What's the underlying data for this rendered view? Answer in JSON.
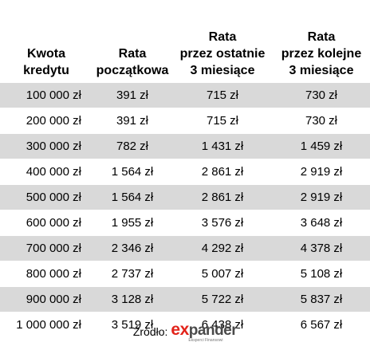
{
  "table": {
    "headers": [
      "Kwota\nkredytu",
      "Rata\npoczątkowa",
      "Rata\nprzez ostatnie\n3 miesiące",
      "Rata\nprzez kolejne\n3 miesiące"
    ],
    "rows": [
      [
        "100 000 zł",
        "391 zł",
        "715 zł",
        "730 zł"
      ],
      [
        "200 000 zł",
        "391 zł",
        "715 zł",
        "730 zł"
      ],
      [
        "300 000 zł",
        "782 zł",
        "1 431 zł",
        "1 459 zł"
      ],
      [
        "400 000 zł",
        "1 564 zł",
        "2 861 zł",
        "2 919 zł"
      ],
      [
        "500 000 zł",
        "1 564 zł",
        "2 861 zł",
        "2 919 zł"
      ],
      [
        "600 000 zł",
        "1 955 zł",
        "3 576 zł",
        "3 648 zł"
      ],
      [
        "700 000 zł",
        "2 346 zł",
        "4 292 zł",
        "4 378 zł"
      ],
      [
        "800 000 zł",
        "2 737 zł",
        "5 007 zł",
        "5 108 zł"
      ],
      [
        "900 000 zł",
        "3 128 zł",
        "5 722 zł",
        "5 837 zł"
      ],
      [
        "1 000 000 zł",
        "3 519 zł",
        "6 438 zł",
        "6 567 zł"
      ]
    ]
  },
  "source": {
    "label": "Źródło:",
    "logo_text": "expander",
    "logo_tagline": "Eksperci Finansowi"
  },
  "colors": {
    "row_shade": "#d9d9d9",
    "logo_accent": "#e2231a",
    "logo_text": "#4a4a4a"
  }
}
